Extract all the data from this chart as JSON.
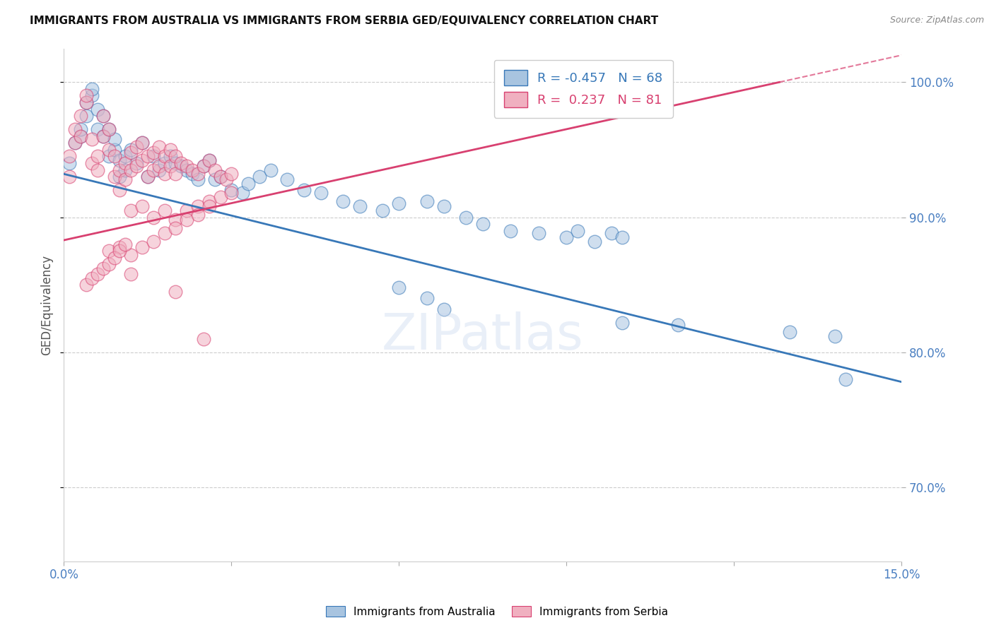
{
  "title": "IMMIGRANTS FROM AUSTRALIA VS IMMIGRANTS FROM SERBIA GED/EQUIVALENCY CORRELATION CHART",
  "source": "Source: ZipAtlas.com",
  "ylabel": "GED/Equivalency",
  "xlim": [
    0.0,
    0.15
  ],
  "ylim": [
    0.645,
    1.025
  ],
  "color_australia": "#a8c4e0",
  "color_serbia": "#f0b0c0",
  "line_color_australia": "#3878b8",
  "line_color_serbia": "#d84070",
  "legend_R_australia": "-0.457",
  "legend_N_australia": "68",
  "legend_R_serbia": "0.237",
  "legend_N_serbia": "81",
  "aus_line_x0": 0.0,
  "aus_line_y0": 0.932,
  "aus_line_x1": 0.15,
  "aus_line_y1": 0.778,
  "ser_line_x0": 0.0,
  "ser_line_y0": 0.883,
  "ser_line_x1": 0.15,
  "ser_line_y1": 1.02,
  "australia_x": [
    0.001,
    0.002,
    0.003,
    0.003,
    0.004,
    0.004,
    0.005,
    0.005,
    0.006,
    0.006,
    0.007,
    0.007,
    0.008,
    0.008,
    0.009,
    0.009,
    0.01,
    0.01,
    0.011,
    0.011,
    0.012,
    0.013,
    0.014,
    0.015,
    0.016,
    0.017,
    0.018,
    0.019,
    0.02,
    0.021,
    0.022,
    0.023,
    0.024,
    0.025,
    0.026,
    0.027,
    0.028,
    0.03,
    0.032,
    0.033,
    0.035,
    0.037,
    0.04,
    0.043,
    0.046,
    0.05,
    0.053,
    0.057,
    0.06,
    0.065,
    0.068,
    0.072,
    0.075,
    0.08,
    0.085,
    0.09,
    0.092,
    0.095,
    0.098,
    0.1,
    0.06,
    0.065,
    0.068,
    0.1,
    0.11,
    0.13,
    0.138,
    0.14
  ],
  "australia_y": [
    0.94,
    0.955,
    0.96,
    0.965,
    0.975,
    0.985,
    0.99,
    0.995,
    0.965,
    0.98,
    0.96,
    0.975,
    0.945,
    0.965,
    0.95,
    0.958,
    0.93,
    0.942,
    0.935,
    0.945,
    0.95,
    0.94,
    0.955,
    0.93,
    0.945,
    0.935,
    0.94,
    0.945,
    0.94,
    0.938,
    0.935,
    0.932,
    0.928,
    0.938,
    0.942,
    0.928,
    0.93,
    0.92,
    0.918,
    0.925,
    0.93,
    0.935,
    0.928,
    0.92,
    0.918,
    0.912,
    0.908,
    0.905,
    0.91,
    0.912,
    0.908,
    0.9,
    0.895,
    0.89,
    0.888,
    0.885,
    0.89,
    0.882,
    0.888,
    0.885,
    0.848,
    0.84,
    0.832,
    0.822,
    0.82,
    0.815,
    0.812,
    0.78
  ],
  "serbia_x": [
    0.001,
    0.001,
    0.002,
    0.002,
    0.003,
    0.003,
    0.004,
    0.004,
    0.005,
    0.005,
    0.006,
    0.006,
    0.007,
    0.007,
    0.008,
    0.008,
    0.009,
    0.009,
    0.01,
    0.01,
    0.011,
    0.011,
    0.012,
    0.012,
    0.013,
    0.013,
    0.014,
    0.014,
    0.015,
    0.015,
    0.016,
    0.016,
    0.017,
    0.017,
    0.018,
    0.018,
    0.019,
    0.019,
    0.02,
    0.02,
    0.021,
    0.022,
    0.023,
    0.024,
    0.025,
    0.026,
    0.027,
    0.028,
    0.029,
    0.03,
    0.012,
    0.014,
    0.016,
    0.018,
    0.02,
    0.022,
    0.024,
    0.026,
    0.028,
    0.03,
    0.008,
    0.01,
    0.012,
    0.014,
    0.016,
    0.018,
    0.02,
    0.022,
    0.024,
    0.026,
    0.004,
    0.005,
    0.006,
    0.007,
    0.008,
    0.009,
    0.01,
    0.011,
    0.012,
    0.02,
    0.025
  ],
  "serbia_y": [
    0.93,
    0.945,
    0.955,
    0.965,
    0.96,
    0.975,
    0.985,
    0.99,
    0.94,
    0.958,
    0.935,
    0.945,
    0.96,
    0.975,
    0.95,
    0.965,
    0.93,
    0.945,
    0.92,
    0.935,
    0.928,
    0.94,
    0.935,
    0.948,
    0.938,
    0.952,
    0.942,
    0.955,
    0.93,
    0.945,
    0.935,
    0.948,
    0.938,
    0.952,
    0.932,
    0.945,
    0.938,
    0.95,
    0.932,
    0.945,
    0.94,
    0.938,
    0.935,
    0.932,
    0.938,
    0.942,
    0.935,
    0.93,
    0.928,
    0.932,
    0.905,
    0.908,
    0.9,
    0.905,
    0.898,
    0.905,
    0.908,
    0.912,
    0.915,
    0.918,
    0.875,
    0.878,
    0.872,
    0.878,
    0.882,
    0.888,
    0.892,
    0.898,
    0.902,
    0.908,
    0.85,
    0.855,
    0.858,
    0.862,
    0.865,
    0.87,
    0.875,
    0.88,
    0.858,
    0.845,
    0.81
  ]
}
